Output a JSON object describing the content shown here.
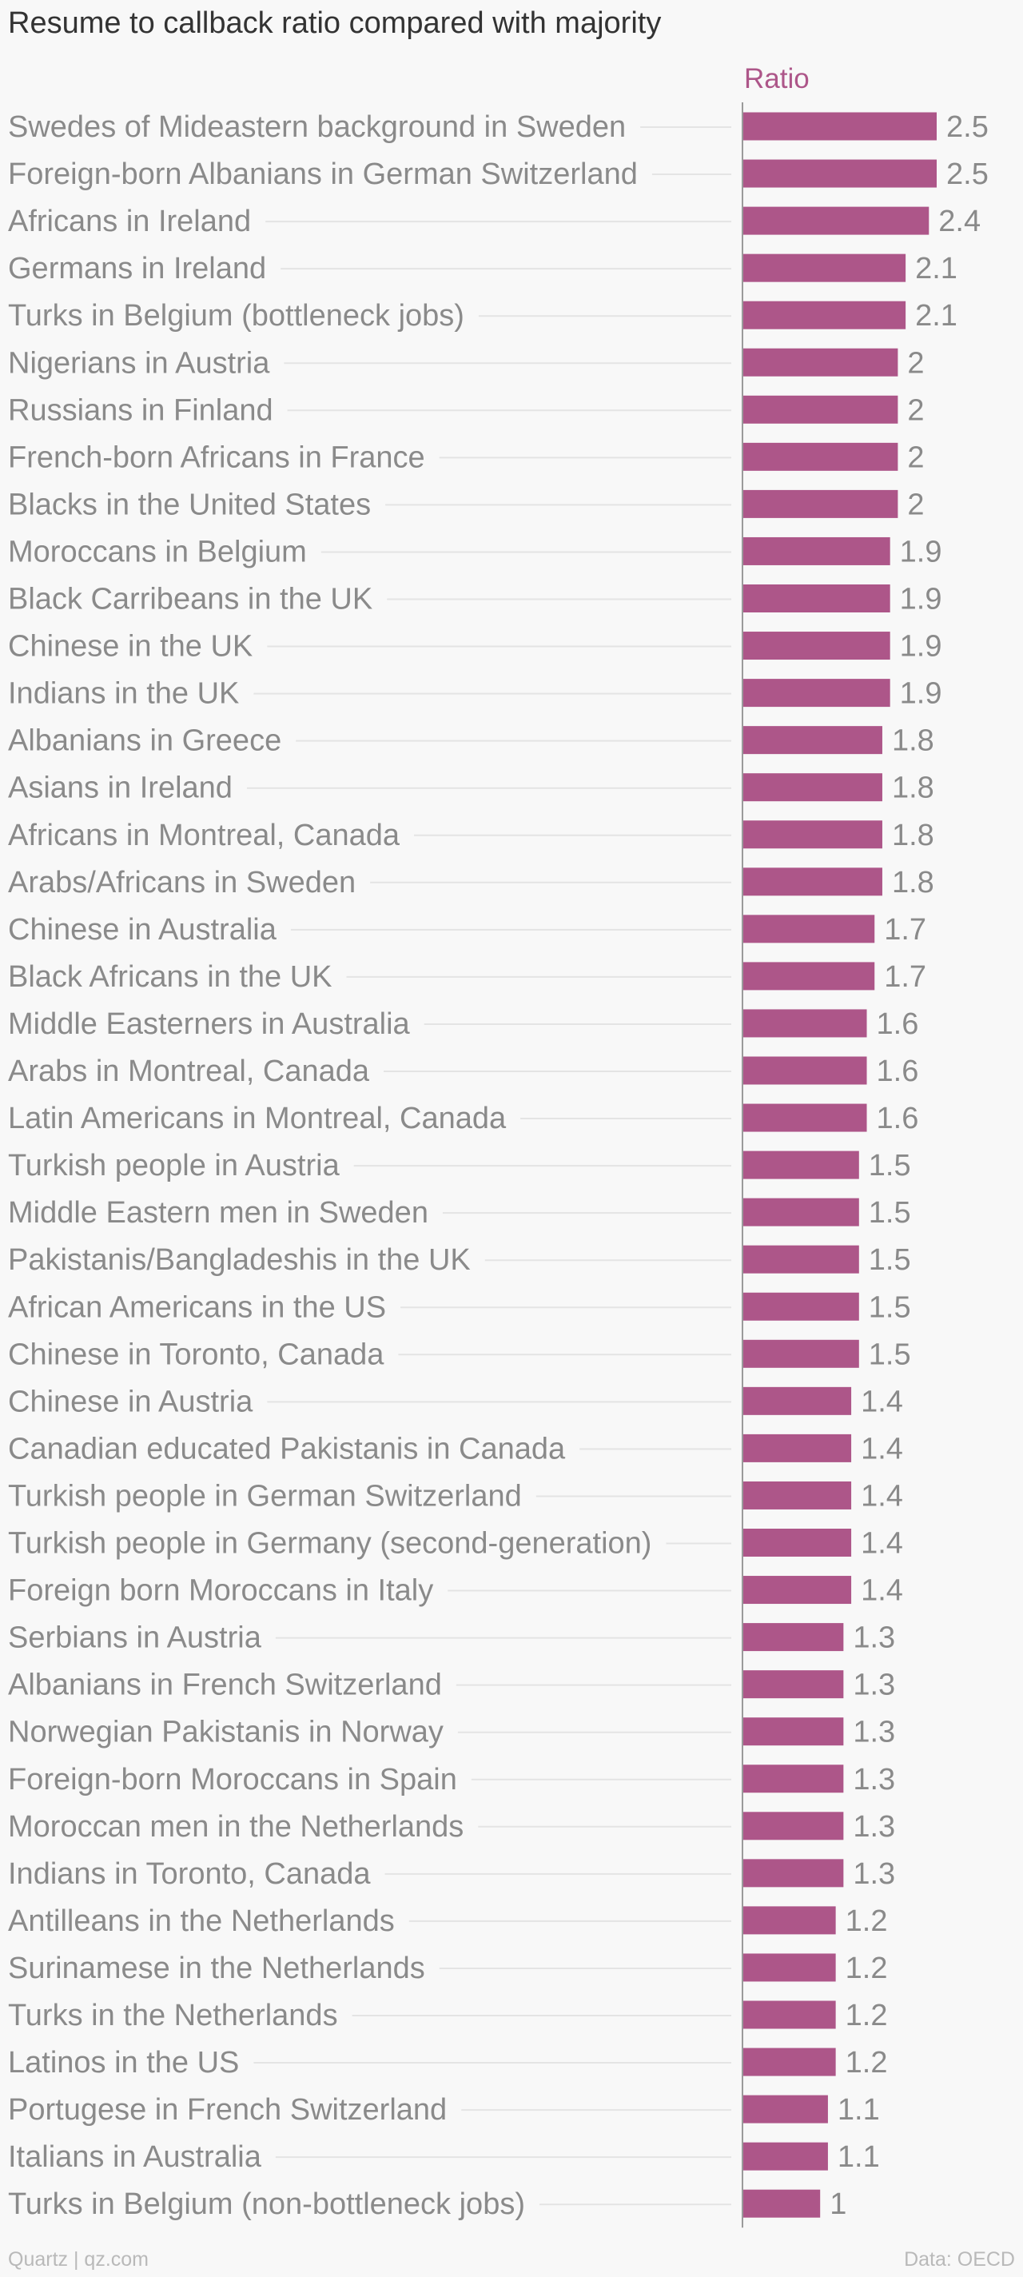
{
  "title": "Resume to callback ratio compared with majority",
  "footer": {
    "source_left": "Quartz | qz.com",
    "source_right": "Data: OECD"
  },
  "colors": {
    "bar": "#ad5689",
    "label": "#8a8a8a",
    "title": "#333333",
    "guide": "#e4e4e4",
    "axis": "#9a9a9a"
  },
  "chart_data": {
    "type": "bar",
    "orientation": "horizontal",
    "series": [
      {
        "name": "Ratio",
        "values": [
          2.5,
          2.5,
          2.4,
          2.1,
          2.1,
          2,
          2,
          2,
          2,
          1.9,
          1.9,
          1.9,
          1.9,
          1.8,
          1.8,
          1.8,
          1.8,
          1.7,
          1.7,
          1.6,
          1.6,
          1.6,
          1.5,
          1.5,
          1.5,
          1.5,
          1.5,
          1.4,
          1.4,
          1.4,
          1.4,
          1.4,
          1.3,
          1.3,
          1.3,
          1.3,
          1.3,
          1.3,
          1.2,
          1.2,
          1.2,
          1.2,
          1.1,
          1.1,
          1
        ]
      }
    ],
    "categories": [
      "Swedes of Mideastern background in Sweden",
      "Foreign-born Albanians in German Switzerland",
      "Africans in Ireland",
      "Germans in Ireland",
      "Turks in Belgium (bottleneck jobs)",
      "Nigerians in Austria",
      "Russians in Finland",
      "French-born Africans in France",
      "Blacks in the United States",
      "Moroccans in Belgium",
      "Black Carribeans in the UK",
      "Chinese in the UK",
      "Indians in the UK",
      "Albanians in Greece",
      "Asians in Ireland",
      "Africans in Montreal, Canada",
      "Arabs/Africans in Sweden",
      "Chinese in Australia",
      "Black Africans in the UK",
      "Middle Easterners in Australia",
      "Arabs in Montreal, Canada",
      "Latin Americans in Montreal, Canada",
      "Turkish people in Austria",
      "Middle Eastern men in Sweden",
      "Pakistanis/Bangladeshis in the UK",
      "African Americans in the US",
      "Chinese in Toronto, Canada",
      "Chinese in Austria",
      "Canadian educated Pakistanis in Canada",
      "Turkish people in German Switzerland",
      "Turkish people in Germany (second-generation)",
      "Foreign born Moroccans in Italy",
      "Serbians in Austria",
      "Albanians in French Switzerland",
      "Norwegian Pakistanis in Norway",
      "Foreign-born Moroccans in Spain",
      "Moroccan men in the Netherlands",
      "Indians in Toronto, Canada",
      "Antilleans in the Netherlands",
      "Surinamese in the Netherlands",
      "Turks in the Netherlands",
      "Latinos in the US",
      "Portugese in French Switzerland",
      "Italians in Australia",
      "Turks in Belgium (non-bottleneck jobs)"
    ],
    "value_labels": [
      "2.5",
      "2.5",
      "2.4",
      "2.1",
      "2.1",
      "2",
      "2",
      "2",
      "2",
      "1.9",
      "1.9",
      "1.9",
      "1.9",
      "1.8",
      "1.8",
      "1.8",
      "1.8",
      "1.7",
      "1.7",
      "1.6",
      "1.6",
      "1.6",
      "1.5",
      "1.5",
      "1.5",
      "1.5",
      "1.5",
      "1.4",
      "1.4",
      "1.4",
      "1.4",
      "1.4",
      "1.3",
      "1.3",
      "1.3",
      "1.3",
      "1.3",
      "1.3",
      "1.2",
      "1.2",
      "1.2",
      "1.2",
      "1.1",
      "1.1",
      "1"
    ],
    "xlim": [
      0,
      2.5
    ],
    "legend": "top",
    "grid": false
  }
}
